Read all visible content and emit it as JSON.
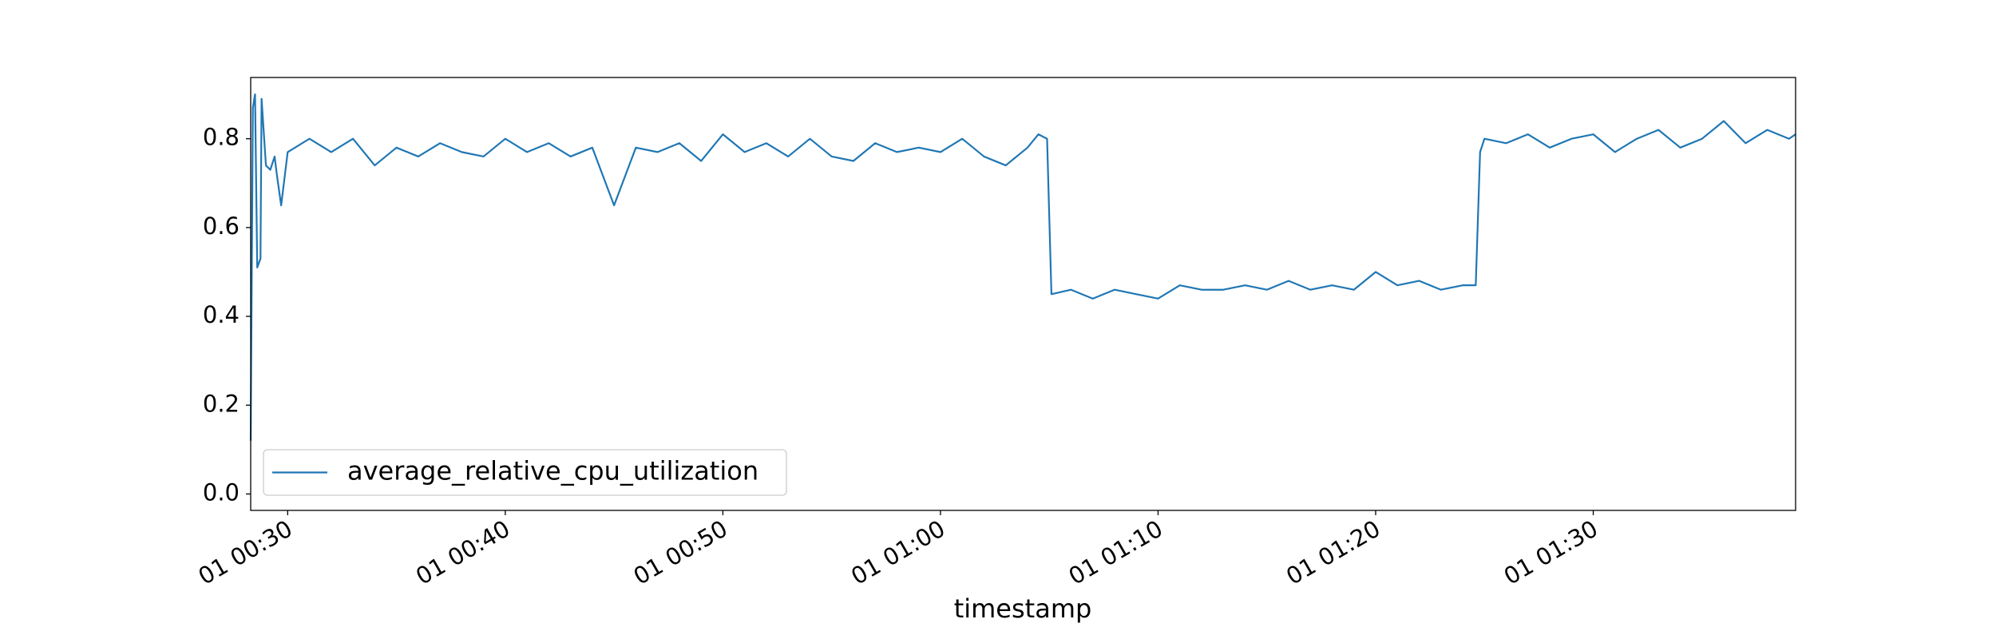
{
  "chart_data": {
    "type": "line",
    "xlabel": "timestamp",
    "x": [
      28.3,
      28.4,
      28.5,
      28.6,
      28.75,
      28.8,
      29.0,
      29.2,
      29.4,
      29.5,
      29.7,
      30,
      31,
      32,
      33,
      34,
      35,
      36,
      37,
      38,
      39,
      40,
      41,
      42,
      43,
      44,
      45,
      46,
      47,
      48,
      49,
      50,
      51,
      52,
      53,
      54,
      55,
      56,
      57,
      58,
      59,
      60,
      61,
      62,
      63,
      64,
      64.5,
      64.9,
      65.1,
      66,
      67,
      68,
      69,
      70,
      71,
      72,
      73,
      74,
      75,
      76,
      77,
      78,
      79,
      80,
      81,
      82,
      83,
      84,
      84.6,
      84.8,
      85,
      86,
      87,
      88,
      89,
      90,
      91,
      92,
      93,
      94,
      95,
      96,
      97,
      98,
      99,
      99.3
    ],
    "series": [
      {
        "name": "average_relative_cpu_utilization",
        "color": "#1f77b4",
        "values": [
          0.12,
          0.87,
          0.9,
          0.51,
          0.53,
          0.89,
          0.74,
          0.73,
          0.76,
          0.72,
          0.65,
          0.77,
          0.8,
          0.77,
          0.8,
          0.74,
          0.78,
          0.76,
          0.79,
          0.77,
          0.76,
          0.8,
          0.77,
          0.79,
          0.76,
          0.78,
          0.65,
          0.78,
          0.77,
          0.79,
          0.75,
          0.81,
          0.77,
          0.79,
          0.76,
          0.8,
          0.76,
          0.75,
          0.79,
          0.77,
          0.78,
          0.77,
          0.8,
          0.76,
          0.74,
          0.78,
          0.81,
          0.8,
          0.45,
          0.46,
          0.44,
          0.46,
          0.45,
          0.44,
          0.47,
          0.46,
          0.46,
          0.47,
          0.46,
          0.48,
          0.46,
          0.47,
          0.46,
          0.5,
          0.47,
          0.48,
          0.46,
          0.47,
          0.47,
          0.77,
          0.8,
          0.79,
          0.81,
          0.78,
          0.8,
          0.81,
          0.77,
          0.8,
          0.82,
          0.78,
          0.8,
          0.84,
          0.79,
          0.82,
          0.8,
          0.81
        ]
      }
    ],
    "xlim": [
      28.3,
      99.3
    ],
    "xticks": [
      {
        "value": 30,
        "label": "01 00:30"
      },
      {
        "value": 40,
        "label": "01 00:40"
      },
      {
        "value": 50,
        "label": "01 00:50"
      },
      {
        "value": 60,
        "label": "01 01:00"
      },
      {
        "value": 70,
        "label": "01 01:10"
      },
      {
        "value": 80,
        "label": "01 01:20"
      },
      {
        "value": 90,
        "label": "01 01:30"
      }
    ],
    "ylim": [
      -0.037,
      0.938
    ],
    "yticks": [
      {
        "value": 0,
        "label": "0.0"
      },
      0.2,
      0.4,
      0.6,
      0.8
    ],
    "legend": "lower left"
  }
}
